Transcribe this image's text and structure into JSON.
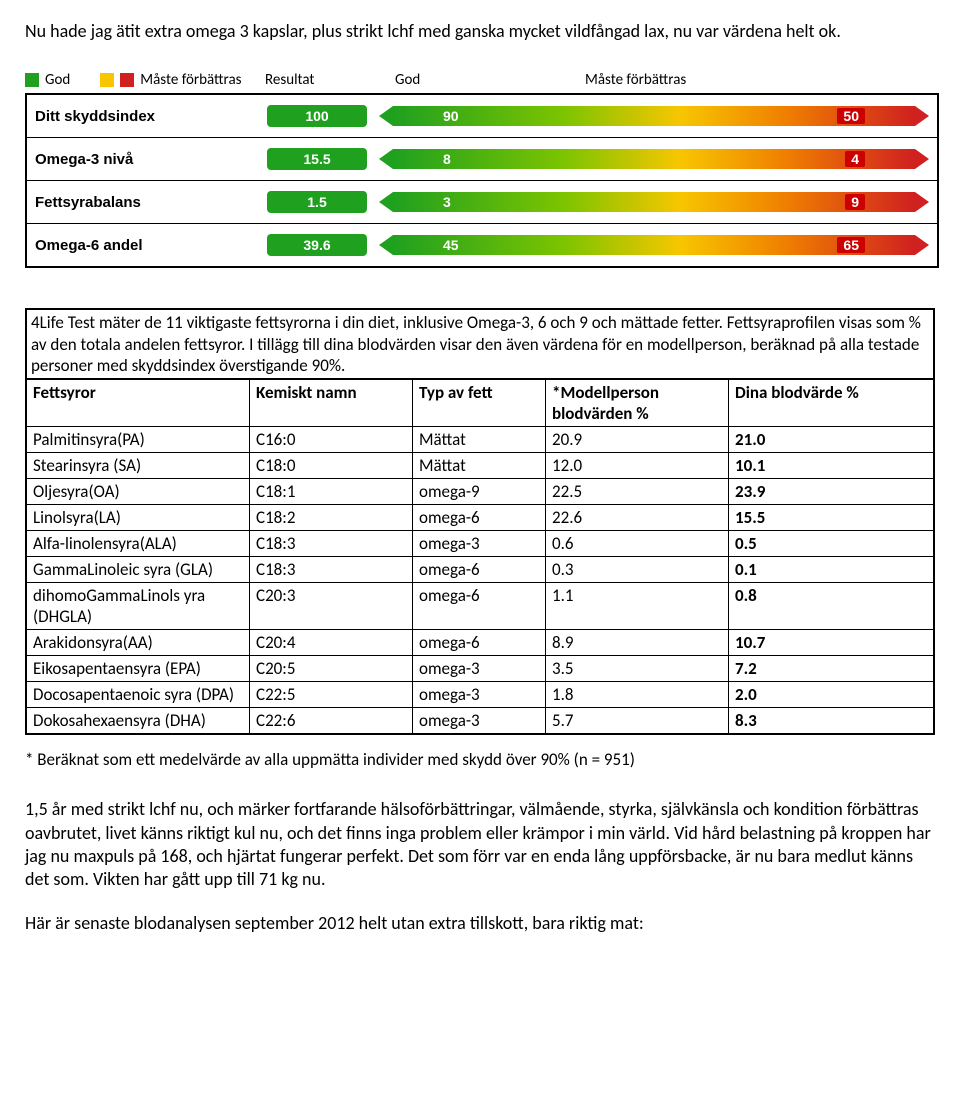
{
  "intro": "Nu hade jag ätit extra omega 3 kapslar, plus strikt lchf med ganska mycket vildfångad lax, nu var värdena helt ok.",
  "legend": {
    "swatch_colors": [
      "#1fa01f",
      "#f7c600",
      "#d02020"
    ],
    "good_word": "God",
    "improve_word": "Måste förbättras",
    "resultat": "Resultat",
    "col_god": "God",
    "col_improve": "Måste förbättras"
  },
  "index_rows": [
    {
      "label": "Ditt skyddsindex",
      "result": "100",
      "mark_a": "90",
      "mark_b": "50"
    },
    {
      "label": "Omega-3 nivå",
      "result": "15.5",
      "mark_a": "8",
      "mark_b": "4"
    },
    {
      "label": "Fettsyrabalans",
      "result": "1.5",
      "mark_a": "3",
      "mark_b": "9"
    },
    {
      "label": "Omega-6 andel",
      "result": "39.6",
      "mark_a": "45",
      "mark_b": "65"
    }
  ],
  "spectrum": {
    "left_color": "#1fa01f",
    "right_color": "#d02020",
    "gradient": "linear-gradient(to right, #1fa01f 0%, #7ec400 33%, #f7c600 55%, #f08000 75%, #d02020 100%)"
  },
  "fatty_intro": "4Life Test mäter de 11 viktigaste fettsyrorna i din diet, inklusive Omega-3, 6 och 9 och mättade fetter. Fettsyraprofilen visas som % av den totala andelen fettsyror. I tillägg till dina blodvärden visar den även värdena för en modellperson, beräknad på alla testade personer med skyddsindex överstigande 90%.",
  "fatty_headers": [
    "Fettsyror",
    "Kemiskt namn",
    "Typ av fett",
    "*Modellperson blodvärden %",
    "Dina blodvärde %"
  ],
  "fatty_rows": [
    [
      "Palmitinsyra(PA)",
      "C16:0",
      "Mättat",
      "20.9",
      "21.0"
    ],
    [
      "Stearinsyra (SA)",
      "C18:0",
      "Mättat",
      "12.0",
      "10.1"
    ],
    [
      "Oljesyra(OA)",
      "C18:1",
      "omega-9",
      "22.5",
      "23.9"
    ],
    [
      "Linolsyra(LA)",
      "C18:2",
      "omega-6",
      "22.6",
      "15.5"
    ],
    [
      "Alfa-linolensyra(ALA)",
      "C18:3",
      "omega-3",
      "0.6",
      "0.5"
    ],
    [
      "GammaLinoleic syra (GLA)",
      "C18:3",
      "omega-6",
      "0.3",
      "0.1"
    ],
    [
      "dihomoGammaLinols yra (DHGLA)",
      "C20:3",
      "omega-6",
      "1.1",
      "0.8"
    ],
    [
      "Arakidonsyra(AA)",
      "C20:4",
      "omega-6",
      "8.9",
      "10.7"
    ],
    [
      "Eikosapentaensyra (EPA)",
      "C20:5",
      "omega-3",
      "3.5",
      "7.2"
    ],
    [
      "Docosapentaenoic syra (DPA)",
      "C22:5",
      "omega-3",
      "1.8",
      "2.0"
    ],
    [
      "Dokosahexaensyra (DHA)",
      "C22:6",
      "omega-3",
      "5.7",
      "8.3"
    ]
  ],
  "footnote": "* Beräknat som ett medelvärde av alla uppmätta individer med skydd över 90% (n = 951)",
  "para1": "1,5 år med strikt lchf nu, och märker fortfarande hälsoförbättringar, välmående, styrka, självkänsla och kondition förbättras oavbrutet, livet känns riktigt kul nu, och det finns inga problem eller krämpor i min värld. Vid hård belastning på kroppen har jag nu maxpuls på 168, och hjärtat fungerar perfekt. Det som förr var en enda lång uppförsbacke, är nu bara medlut känns det som. Vikten har gått upp till 71 kg nu.",
  "para2": "Här är senaste blodanalysen september 2012 helt utan extra tillskott, bara riktig mat:"
}
